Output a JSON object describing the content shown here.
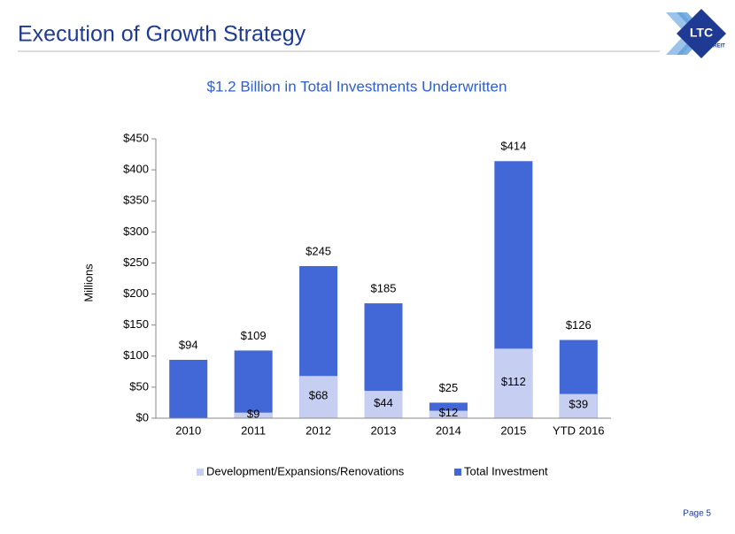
{
  "header": {
    "title": "Execution of Growth Strategy",
    "logo": "LTC",
    "logo_sub": "REIT"
  },
  "footer": {
    "page": "Page 5"
  },
  "chart_data": {
    "type": "bar",
    "mode": "overlap",
    "title": "$1.2 Billion in Total Investments Underwritten",
    "ylabel": "Millions",
    "categories": [
      "2010",
      "2011",
      "2012",
      "2013",
      "2014",
      "2015",
      "YTD 2016"
    ],
    "series": [
      {
        "name": "Total Investment",
        "color": "#4267d6",
        "values": [
          94,
          109,
          245,
          185,
          25,
          414,
          126
        ],
        "value_labels": [
          "$94",
          "$109",
          "$245",
          "$185",
          "$25",
          "$414",
          "$126"
        ],
        "label_position": "above"
      },
      {
        "name": "Development/Expansions/Renovations",
        "color": "#c6cff1",
        "values": [
          null,
          9,
          68,
          44,
          12,
          112,
          39
        ],
        "value_labels": [
          null,
          "$9",
          "$68",
          "$44",
          "$12",
          "$112",
          "$39"
        ],
        "label_position": "inside"
      }
    ],
    "legend_order": [
      1,
      0
    ],
    "ylim": [
      0,
      450
    ],
    "yticks": [
      {
        "value": 0,
        "label": "$0"
      },
      {
        "value": 50,
        "label": "$50"
      },
      {
        "value": 100,
        "label": "$100"
      },
      {
        "value": 150,
        "label": "$150"
      },
      {
        "value": 200,
        "label": "$200"
      },
      {
        "value": 250,
        "label": "$250"
      },
      {
        "value": 300,
        "label": "$300"
      },
      {
        "value": 350,
        "label": "$350"
      },
      {
        "value": 400,
        "label": "$400"
      },
      {
        "value": 450,
        "label": "$450"
      }
    ],
    "grid": false
  }
}
